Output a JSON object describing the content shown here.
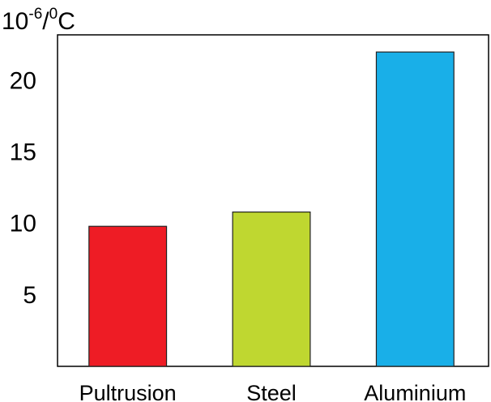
{
  "chart_data": {
    "type": "bar",
    "unit_label": {
      "base": "10",
      "exponent": "-6",
      "separator": "/",
      "degree": "0",
      "unit": "C"
    },
    "categories": [
      "Pultrusion",
      "Steel",
      "Aluminium"
    ],
    "values": [
      9.8,
      10.8,
      22
    ],
    "colors": [
      "#ee1c25",
      "#bfd730",
      "#19afe8"
    ],
    "yticks": [
      "5",
      "10",
      "15",
      "20"
    ],
    "ylim": [
      0,
      23.2
    ],
    "grid": false,
    "legend": "none"
  }
}
